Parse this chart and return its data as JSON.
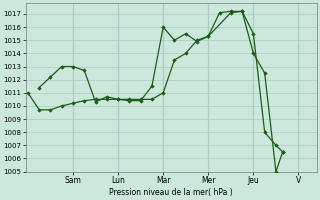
{
  "bg_color": "#cce8dc",
  "grid_color": "#aacebb",
  "line_color": "#1a5c1a",
  "marker_color": "#1a5c1a",
  "xlabel": "Pression niveau de la mer( hPa )",
  "ylim": [
    1005,
    1017.8
  ],
  "yticks": [
    1005,
    1006,
    1007,
    1008,
    1009,
    1010,
    1011,
    1012,
    1013,
    1014,
    1015,
    1016,
    1017
  ],
  "day_labels": [
    "Sam",
    "Lun",
    "Mar",
    "Mer",
    "Jeu",
    "V"
  ],
  "day_x": [
    2.0,
    4.0,
    6.0,
    8.0,
    10.0,
    12.0
  ],
  "xlim": [
    -0.1,
    12.8
  ],
  "series1_x": [
    0.0,
    0.5,
    1.0,
    1.5,
    2.0,
    2.5,
    3.0,
    3.5,
    4.0,
    4.5,
    5.0,
    5.5,
    6.0,
    6.5,
    7.0,
    7.5,
    8.0,
    9.0,
    9.5,
    10.0,
    10.5,
    11.0,
    11.3
  ],
  "series1_y": [
    1011.0,
    1009.7,
    1009.7,
    1010.0,
    1010.2,
    1010.4,
    1010.5,
    1010.5,
    1010.5,
    1010.5,
    1010.5,
    1010.5,
    1011.0,
    1013.5,
    1014.0,
    1015.0,
    1015.3,
    1017.1,
    1017.2,
    1015.5,
    1008.0,
    1007.0,
    1006.5
  ],
  "series2_x": [
    0.5,
    1.0,
    1.5,
    2.0,
    2.5,
    3.0,
    3.5,
    4.0,
    4.5,
    5.0,
    5.5,
    6.0,
    6.5,
    7.0,
    7.5,
    8.0,
    8.5,
    9.0,
    9.5,
    10.0,
    10.5,
    11.0,
    11.3
  ],
  "series2_y": [
    1011.4,
    1012.2,
    1013.0,
    1013.0,
    1012.7,
    1010.3,
    1010.7,
    1010.5,
    1010.4,
    1010.4,
    1011.5,
    1016.0,
    1015.0,
    1015.5,
    1014.9,
    1015.3,
    1017.1,
    1017.2,
    1017.2,
    1014.0,
    1012.5,
    1005.0,
    1006.5
  ]
}
